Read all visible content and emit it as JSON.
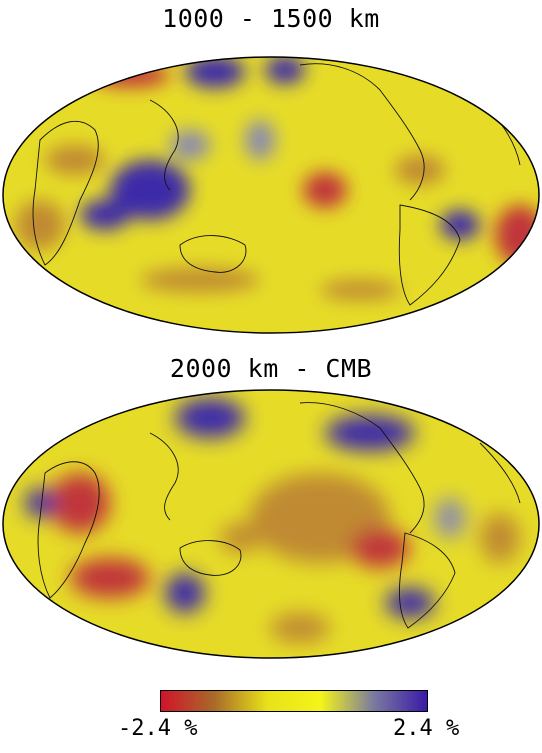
{
  "maps": [
    {
      "title": "1000 - 1500 km"
    },
    {
      "title": "2000 km - CMB"
    }
  ],
  "colorbar": {
    "min_label": "-2.4 %",
    "max_label": "2.4 %",
    "min_value": -2.4,
    "max_value": 2.4,
    "unit": "%",
    "colors": [
      "#d0142a",
      "#a86a2a",
      "#e8e21a",
      "#f4f41a",
      "#7a7aa0",
      "#3a1aa8"
    ]
  },
  "colors": {
    "base": "#e6dc28",
    "slow": "#c0343a",
    "slow_mid": "#c08a30",
    "fast": "#3c2aa8",
    "fast_mid": "#8a8ab0",
    "coast": "#111111"
  }
}
